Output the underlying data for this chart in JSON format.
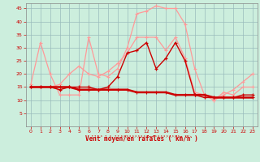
{
  "x": [
    0,
    1,
    2,
    3,
    4,
    5,
    6,
    7,
    8,
    9,
    10,
    11,
    12,
    13,
    14,
    15,
    16,
    17,
    18,
    19,
    20,
    21,
    22,
    23
  ],
  "series_rafales_top": [
    16,
    32,
    20,
    12,
    12,
    12,
    34,
    20,
    19,
    22,
    30,
    43,
    44,
    46,
    45,
    45,
    39,
    22,
    12,
    10,
    12,
    14,
    17,
    20
  ],
  "series_rafales_bottom": [
    15,
    15,
    15,
    16,
    20,
    23,
    20,
    19,
    21,
    24,
    28,
    34,
    34,
    34,
    29,
    34,
    26,
    13,
    12,
    10,
    13,
    12,
    15,
    15
  ],
  "series_moyen_top": [
    15,
    15,
    15,
    14,
    15,
    15,
    15,
    14,
    15,
    19,
    28,
    29,
    32,
    22,
    26,
    32,
    25,
    12,
    11,
    11,
    11,
    11,
    12,
    12
  ],
  "series_moyen_bottom": [
    15,
    15,
    15,
    15,
    15,
    14,
    14,
    14,
    14,
    14,
    14,
    13,
    13,
    13,
    13,
    12,
    12,
    12,
    12,
    11,
    11,
    11,
    11,
    11
  ],
  "bg_color": "#cceedd",
  "grid_color": "#99bbbb",
  "color_light": "#ff9999",
  "color_dark": "#cc0000",
  "xlabel": "Vent moyen/en rafales ( km/h )",
  "ylim": [
    0,
    47
  ],
  "xlim": [
    -0.5,
    23.5
  ],
  "yticks": [
    5,
    10,
    15,
    20,
    25,
    30,
    35,
    40,
    45
  ],
  "xticks": [
    0,
    1,
    2,
    3,
    4,
    5,
    6,
    7,
    8,
    9,
    10,
    11,
    12,
    13,
    14,
    15,
    16,
    17,
    18,
    19,
    20,
    21,
    22,
    23
  ]
}
